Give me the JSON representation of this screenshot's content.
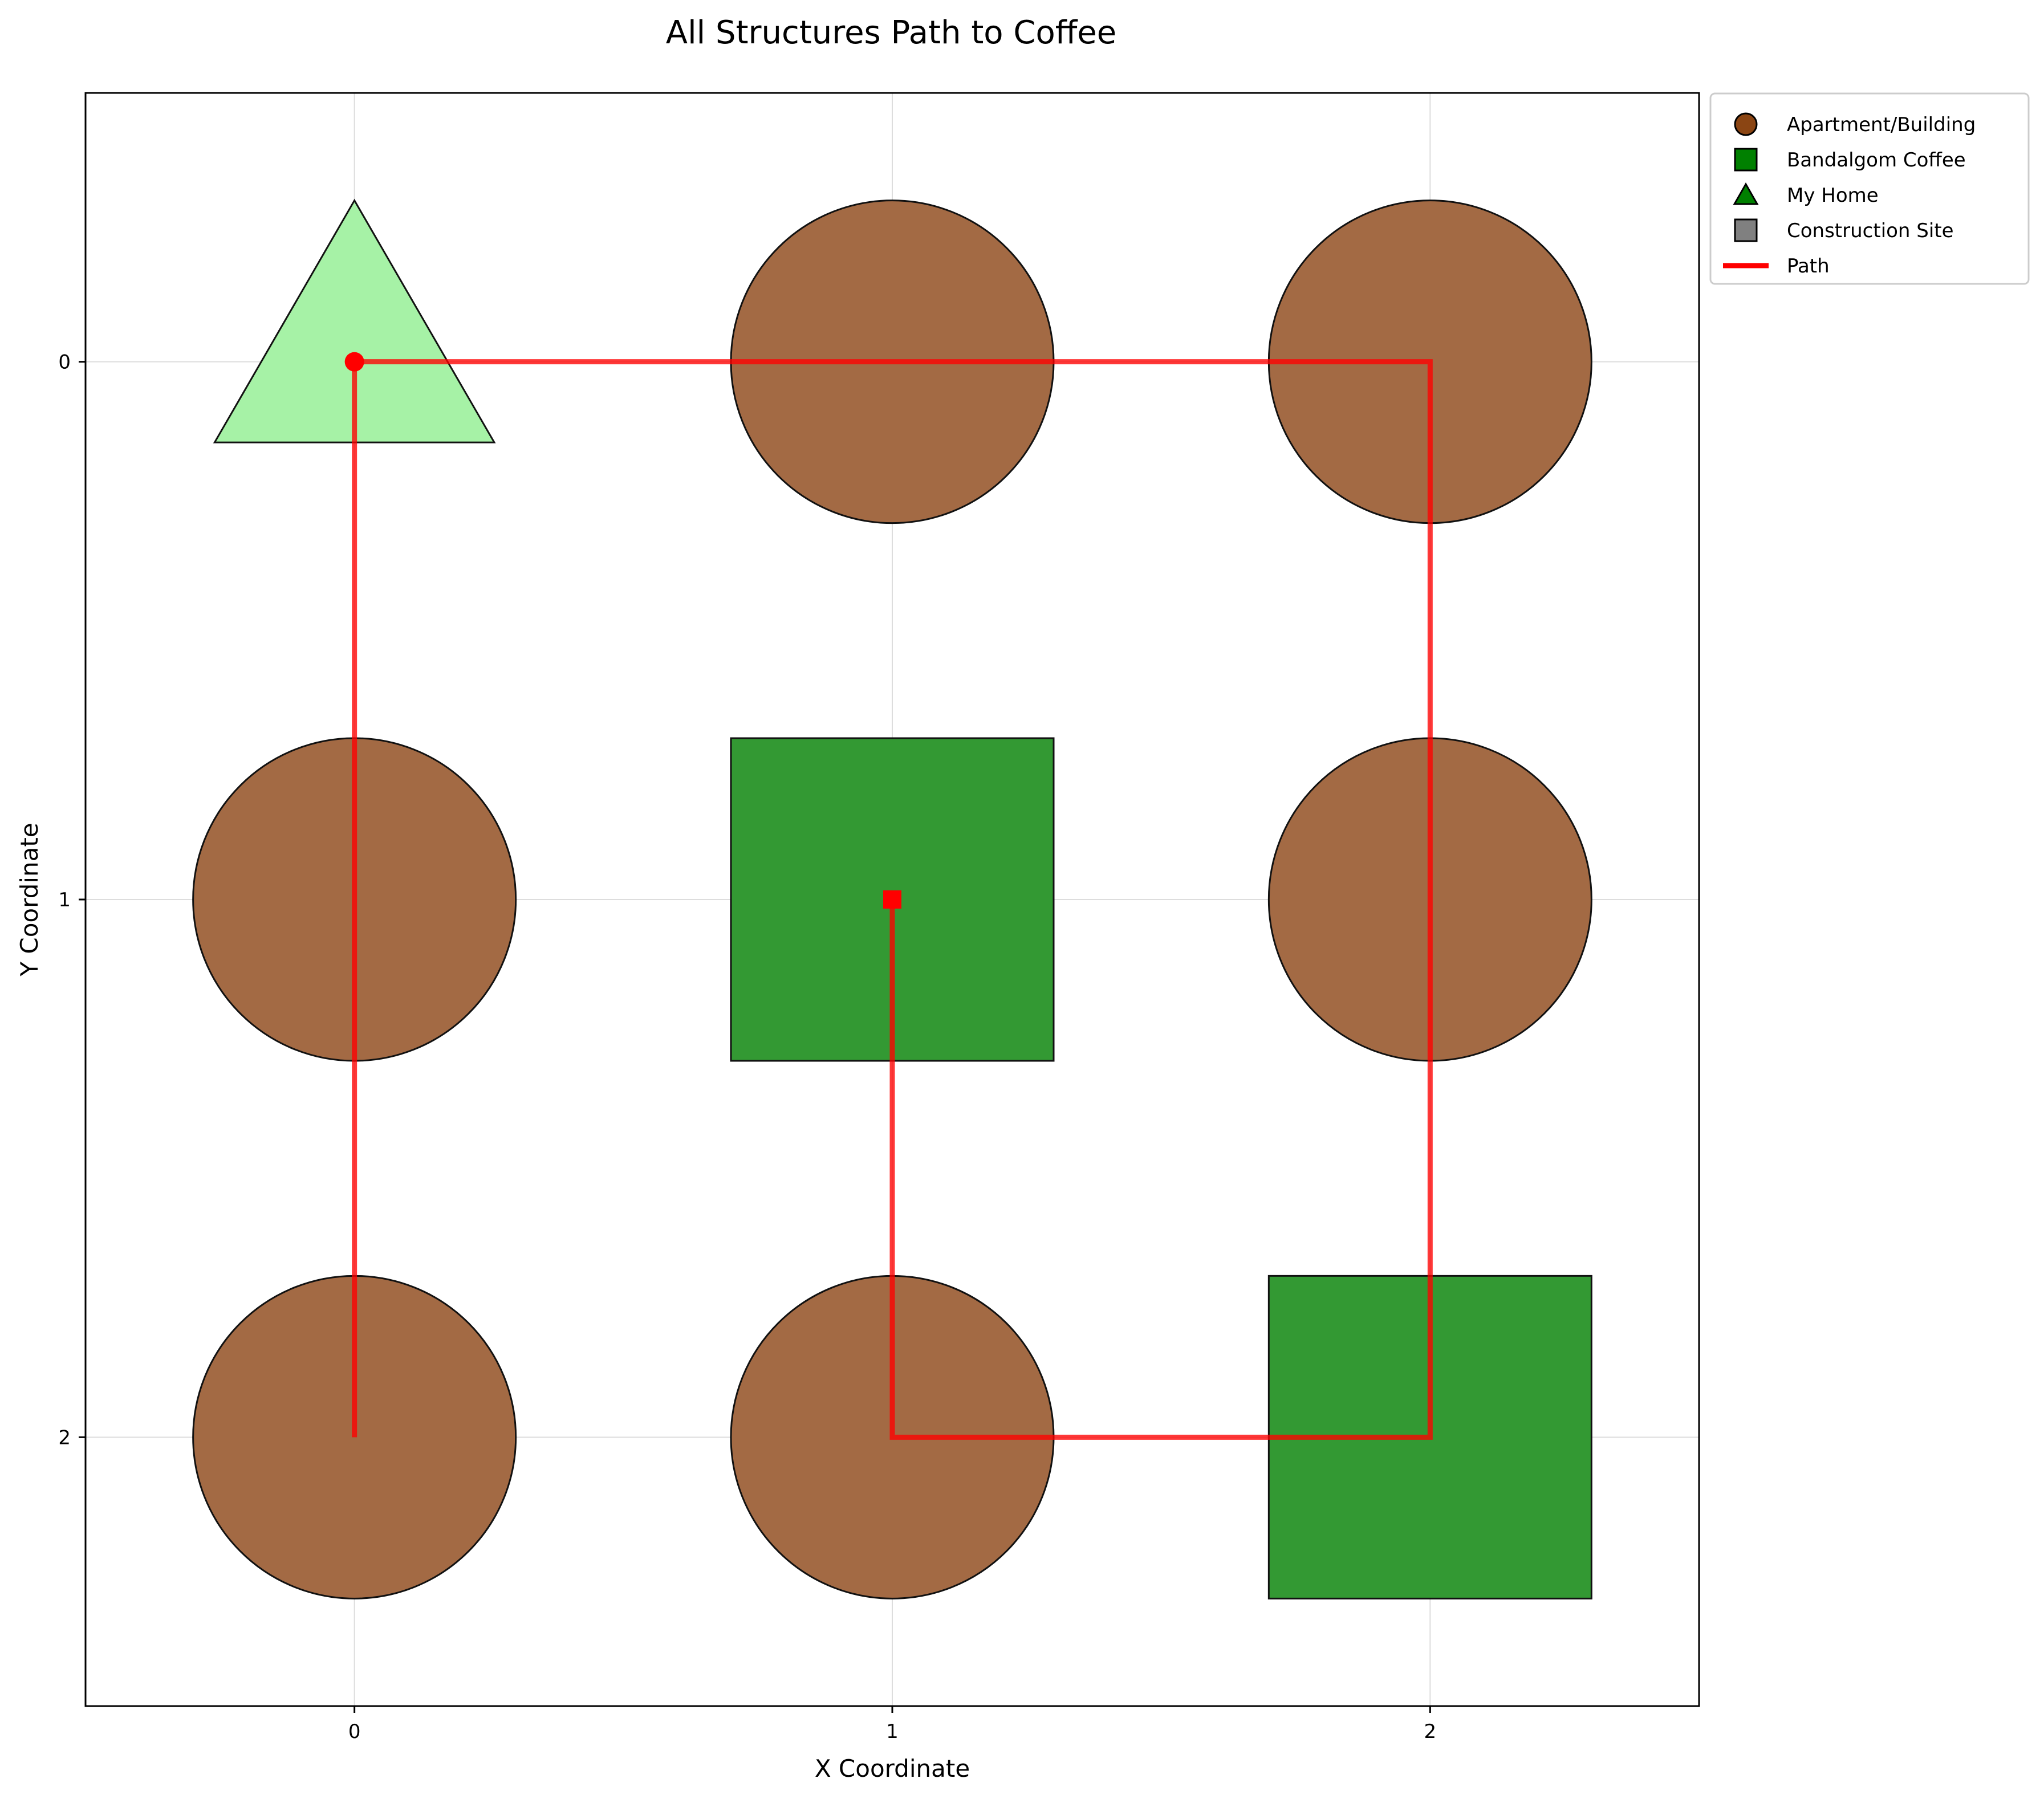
{
  "chart_data": {
    "type": "scatter",
    "title": "All Structures Path to Coffee",
    "xlabel": "X Coordinate",
    "ylabel": "Y Coordinate",
    "xlim": [
      -0.5,
      2.5
    ],
    "ylim": [
      2.5,
      -0.5
    ],
    "y_inverted": true,
    "grid": true,
    "xticks": [
      0,
      1,
      2
    ],
    "yticks": [
      0,
      1,
      2
    ],
    "xtick_labels": [
      "0",
      "1",
      "2"
    ],
    "ytick_labels": [
      "0",
      "1",
      "2"
    ],
    "legend_position": "outside-top-right",
    "structures": [
      {
        "type": "Apartment/Building",
        "x": 1,
        "y": 0
      },
      {
        "type": "Apartment/Building",
        "x": 2,
        "y": 0
      },
      {
        "type": "Apartment/Building",
        "x": 0,
        "y": 1
      },
      {
        "type": "Apartment/Building",
        "x": 2,
        "y": 1
      },
      {
        "type": "Apartment/Building",
        "x": 0,
        "y": 2
      },
      {
        "type": "Apartment/Building",
        "x": 1,
        "y": 2
      },
      {
        "type": "Bandalgom Coffee",
        "x": 1,
        "y": 1
      },
      {
        "type": "Bandalgom Coffee",
        "x": 2,
        "y": 2
      },
      {
        "type": "My Home",
        "x": 0,
        "y": 0
      }
    ],
    "path": {
      "name": "Path",
      "points": [
        [
          0,
          0
        ],
        [
          0,
          2
        ],
        [
          0,
          0
        ],
        [
          2,
          0
        ],
        [
          2,
          2
        ],
        [
          1,
          2
        ],
        [
          1,
          1
        ]
      ],
      "start": [
        0,
        0
      ],
      "end": [
        1,
        1
      ]
    },
    "legend": [
      {
        "label": "Apartment/Building",
        "marker": "circle",
        "color": "#8B4513"
      },
      {
        "label": "Bandalgom Coffee",
        "marker": "square",
        "color": "#008000"
      },
      {
        "label": "My Home",
        "marker": "triangle",
        "color": "#008000"
      },
      {
        "label": "Construction Site",
        "marker": "square",
        "color": "#808080"
      },
      {
        "label": "Path",
        "marker": "line",
        "color": "#FF0000"
      }
    ],
    "colors": {
      "apartment": "#A36A44",
      "coffee": "#339933",
      "home": "#A6F2A6",
      "path": "#FF0000",
      "construction": "#808080"
    }
  }
}
